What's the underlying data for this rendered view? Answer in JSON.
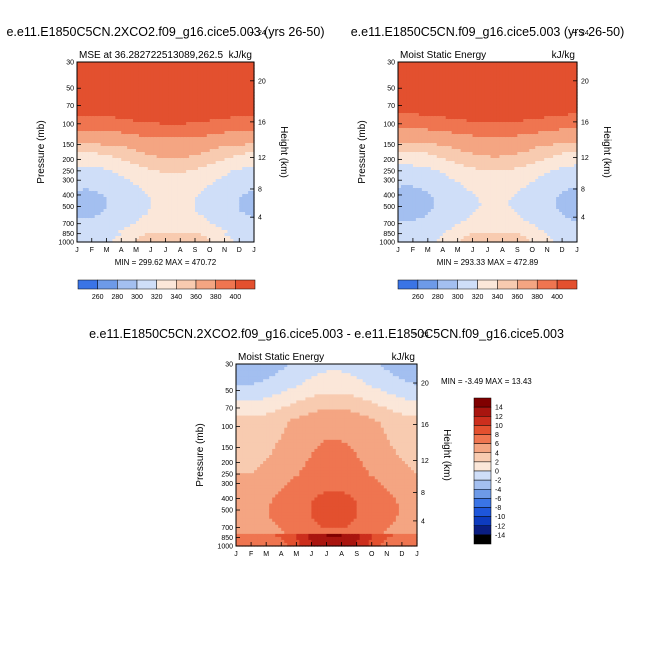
{
  "chart_data": [
    {
      "type": "heatmap",
      "title": "e.e11.E1850C5CN.2XCO2.f09_g16.cice5.003 (yrs 26-50)",
      "subtitle_left": "MSE at 36.282722513089,262.5",
      "subtitle_right": "kJ/kg",
      "ylabel_left": "Pressure (mb)",
      "ylabel_right": "Height (km)",
      "x_ticks": [
        "J",
        "F",
        "M",
        "A",
        "M",
        "J",
        "J",
        "A",
        "S",
        "O",
        "N",
        "D",
        "J"
      ],
      "y_ticks": [
        "30",
        "50",
        "70",
        "100",
        "150",
        "200",
        "250",
        "300",
        "400",
        "500",
        "700",
        "850",
        "1000"
      ],
      "height_ticks": [
        "24",
        "20",
        "16",
        "12",
        "8",
        "4"
      ],
      "stats": "MIN = 299.62 MAX = 470.72",
      "min": 299.62,
      "max": 470.72,
      "levels": [
        260,
        280,
        300,
        320,
        340,
        360,
        380,
        400
      ],
      "colorbar_labels": [
        "260",
        "280",
        "300",
        "320",
        "340",
        "360",
        "380",
        "400"
      ]
    },
    {
      "type": "heatmap",
      "title": "e.e11.E1850C5CN.f09_g16.cice5.003 (yrs 26-50)",
      "subtitle_left": "Moist Static Energy",
      "subtitle_right": "kJ/kg",
      "ylabel_left": "Pressure (mb)",
      "ylabel_right": "Height (km)",
      "x_ticks": [
        "J",
        "F",
        "M",
        "A",
        "M",
        "J",
        "J",
        "A",
        "S",
        "O",
        "N",
        "D",
        "J"
      ],
      "y_ticks": [
        "30",
        "50",
        "70",
        "100",
        "150",
        "200",
        "250",
        "300",
        "400",
        "500",
        "700",
        "850",
        "1000"
      ],
      "height_ticks": [
        "24",
        "20",
        "16",
        "12",
        "8",
        "4"
      ],
      "stats": "MIN = 293.33 MAX = 472.89",
      "min": 293.33,
      "max": 472.89,
      "levels": [
        260,
        280,
        300,
        320,
        340,
        360,
        380,
        400
      ],
      "colorbar_labels": [
        "260",
        "280",
        "300",
        "320",
        "340",
        "360",
        "380",
        "400"
      ]
    },
    {
      "type": "heatmap",
      "title": "e.e11.E1850C5CN.2XCO2.f09_g16.cice5.003 - e.e11.E1850C5CN.f09_g16.cice5.003",
      "subtitle_left": "Moist Static Energy",
      "subtitle_right": "kJ/kg",
      "ylabel_left": "Pressure (mb)",
      "ylabel_right": "Height (km)",
      "x_ticks": [
        "J",
        "F",
        "M",
        "A",
        "M",
        "J",
        "J",
        "A",
        "S",
        "O",
        "N",
        "D",
        "J"
      ],
      "y_ticks": [
        "30",
        "50",
        "70",
        "100",
        "150",
        "200",
        "250",
        "300",
        "400",
        "500",
        "700",
        "850",
        "1000"
      ],
      "height_ticks": [
        "24",
        "20",
        "16",
        "12",
        "8",
        "4"
      ],
      "stats": "MIN =  -3.49 MAX =  13.43",
      "min": -3.49,
      "max": 13.43,
      "levels": [
        -14,
        -12,
        -10,
        -8,
        -6,
        -4,
        -2,
        0,
        2,
        4,
        6,
        8,
        10,
        12,
        14
      ],
      "colorbar_labels": [
        "14",
        "12",
        "10",
        "8",
        "6",
        "4",
        "2",
        "0",
        "-2",
        "-4",
        "-6",
        "-8",
        "-10",
        "-12",
        "-14"
      ]
    }
  ],
  "colors": {
    "abs_palette": [
      "#0a1e82",
      "#0d3bbf",
      "#1e56db",
      "#3a74e6",
      "#6d9ae8",
      "#a3bff0",
      "#cfdef8",
      "#fbe7d9",
      "#f8cbb0",
      "#f4a582",
      "#ef7550",
      "#e3502f",
      "#cc2e1d",
      "#a9150f",
      "#800000"
    ],
    "diff_palette": [
      "#0a1e82",
      "#0d3bbf",
      "#1e56db",
      "#3a74e6",
      "#6d9ae8",
      "#a3bff0",
      "#cfdef8",
      "#fbe7d9",
      "#f8cbb0",
      "#f4a582",
      "#ef7550",
      "#e3502f",
      "#cc2e1d",
      "#a9150f",
      "#800000"
    ]
  }
}
